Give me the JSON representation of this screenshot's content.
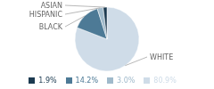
{
  "chart_data": {
    "type": "pie",
    "categories": [
      "WHITE",
      "BLACK",
      "HISPANIC",
      "ASIAN"
    ],
    "values": [
      80.9,
      14.2,
      3.0,
      1.9
    ],
    "value_labels": [
      "80.9%",
      "14.2%",
      "3.0%",
      "1.9%"
    ],
    "colors": [
      "#cfdce8",
      "#4d7a96",
      "#a0bacb",
      "#1c3a50"
    ],
    "legend": "bottom"
  }
}
